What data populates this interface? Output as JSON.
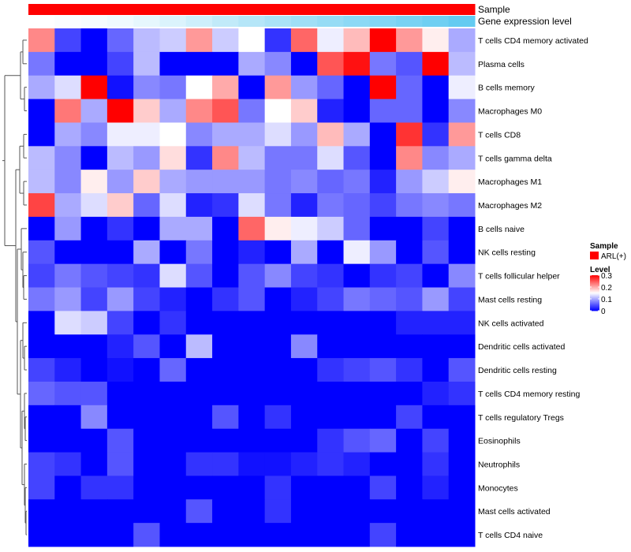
{
  "chart_data": {
    "type": "heatmap",
    "annotation_rows": [
      "Sample",
      "Gene expression level"
    ],
    "row_labels": [
      "T cells CD4 memory activated",
      "Plasma cells",
      "B cells memory",
      "Macrophages M0",
      "T cells CD8",
      "T cells gamma delta",
      "Macrophages M1",
      "Macrophages M2",
      "B cells naive",
      "NK cells resting",
      "T cells follicular helper",
      "Mast cells resting",
      "NK cells activated",
      "Dendritic cells activated",
      "Dendritic cells resting",
      "T cells CD4 memory resting",
      "T cells regulatory  Tregs",
      "Eosinophils",
      "Neutrophils",
      "Monocytes",
      "Mast cells activated",
      "T cells CD4 naive"
    ],
    "n_columns": 17,
    "values": [
      [
        0.22,
        0.04,
        0.0,
        0.06,
        0.11,
        0.12,
        0.21,
        0.12,
        0.15,
        0.03,
        0.24,
        0.14,
        0.19,
        0.3,
        0.21,
        0.16,
        0.1
      ],
      [
        0.07,
        0.0,
        0.0,
        0.04,
        0.11,
        0.0,
        0.0,
        0.0,
        0.1,
        0.08,
        0.0,
        0.25,
        0.29,
        0.07,
        0.05,
        0.3,
        0.11
      ],
      [
        0.1,
        0.13,
        0.3,
        0.01,
        0.08,
        0.07,
        0.15,
        0.2,
        0.0,
        0.21,
        0.09,
        0.06,
        0.0,
        0.3,
        0.06,
        0.0,
        0.14
      ],
      [
        0.0,
        0.23,
        0.1,
        0.3,
        0.18,
        0.1,
        0.22,
        0.25,
        0.07,
        0.15,
        0.18,
        0.02,
        0.0,
        0.06,
        0.06,
        0.0,
        0.08
      ],
      [
        0.0,
        0.1,
        0.08,
        0.14,
        0.14,
        0.15,
        0.08,
        0.1,
        0.1,
        0.13,
        0.09,
        0.19,
        0.1,
        0.0,
        0.27,
        0.03,
        0.21
      ],
      [
        0.11,
        0.08,
        0.0,
        0.11,
        0.09,
        0.17,
        0.03,
        0.22,
        0.11,
        0.07,
        0.07,
        0.13,
        0.05,
        0.0,
        0.22,
        0.08,
        0.1
      ],
      [
        0.11,
        0.08,
        0.16,
        0.09,
        0.18,
        0.1,
        0.09,
        0.09,
        0.09,
        0.07,
        0.08,
        0.06,
        0.07,
        0.02,
        0.09,
        0.12,
        0.16
      ],
      [
        0.26,
        0.1,
        0.13,
        0.18,
        0.06,
        0.13,
        0.02,
        0.03,
        0.13,
        0.07,
        0.02,
        0.07,
        0.06,
        0.04,
        0.07,
        0.08,
        0.07
      ],
      [
        0.0,
        0.09,
        0.0,
        0.03,
        0.0,
        0.1,
        0.1,
        0.0,
        0.24,
        0.16,
        0.14,
        0.12,
        0.06,
        0.0,
        0.0,
        0.04,
        0.0
      ],
      [
        0.05,
        0.0,
        0.0,
        0.0,
        0.1,
        0.0,
        0.07,
        0.0,
        0.02,
        0.0,
        0.1,
        0.0,
        0.14,
        0.09,
        0.0,
        0.05,
        0.0
      ],
      [
        0.04,
        0.07,
        0.05,
        0.04,
        0.03,
        0.13,
        0.05,
        0.0,
        0.05,
        0.08,
        0.04,
        0.03,
        0.0,
        0.03,
        0.04,
        0.0,
        0.08
      ],
      [
        0.07,
        0.09,
        0.04,
        0.09,
        0.04,
        0.02,
        0.0,
        0.03,
        0.05,
        0.0,
        0.02,
        0.04,
        0.07,
        0.06,
        0.05,
        0.09,
        0.04
      ],
      [
        0.0,
        0.13,
        0.12,
        0.04,
        0.0,
        0.03,
        0.0,
        0.0,
        0.0,
        0.0,
        0.0,
        0.0,
        0.0,
        0.0,
        0.02,
        0.02,
        0.02
      ],
      [
        0.0,
        0.0,
        0.0,
        0.02,
        0.05,
        0.0,
        0.11,
        0.0,
        0.0,
        0.0,
        0.08,
        0.0,
        0.0,
        0.0,
        0.0,
        0.0,
        0.0
      ],
      [
        0.04,
        0.02,
        0.0,
        0.01,
        0.0,
        0.06,
        0.0,
        0.0,
        0.0,
        0.0,
        0.0,
        0.03,
        0.04,
        0.05,
        0.03,
        0.0,
        0.05
      ],
      [
        0.06,
        0.05,
        0.05,
        0.0,
        0.0,
        0.0,
        0.0,
        0.0,
        0.0,
        0.0,
        0.0,
        0.0,
        0.0,
        0.0,
        0.0,
        0.02,
        0.03
      ],
      [
        0.0,
        0.0,
        0.08,
        0.0,
        0.0,
        0.0,
        0.0,
        0.05,
        0.0,
        0.03,
        0.0,
        0.0,
        0.0,
        0.0,
        0.04,
        0.0,
        0.0
      ],
      [
        0.0,
        0.0,
        0.0,
        0.05,
        0.0,
        0.0,
        0.0,
        0.0,
        0.0,
        0.0,
        0.0,
        0.03,
        0.05,
        0.06,
        0.0,
        0.04,
        0.0
      ],
      [
        0.04,
        0.03,
        0.0,
        0.05,
        0.0,
        0.0,
        0.03,
        0.03,
        0.01,
        0.01,
        0.02,
        0.03,
        0.02,
        0.0,
        0.0,
        0.03,
        0.0
      ],
      [
        0.04,
        0.0,
        0.03,
        0.03,
        0.0,
        0.0,
        0.0,
        0.0,
        0.0,
        0.03,
        0.0,
        0.0,
        0.0,
        0.04,
        0.0,
        0.02,
        0.0
      ],
      [
        0.0,
        0.0,
        0.0,
        0.0,
        0.0,
        0.0,
        0.05,
        0.0,
        0.0,
        0.03,
        0.0,
        0.0,
        0.0,
        0.0,
        0.0,
        0.0,
        0.0
      ],
      [
        0.0,
        0.0,
        0.0,
        0.0,
        0.05,
        0.0,
        0.0,
        0.0,
        0.0,
        0.0,
        0.0,
        0.0,
        0.0,
        0.04,
        0.0,
        0.0,
        0.0
      ]
    ],
    "sample_values": [
      "ARL(+)",
      "ARL(+)",
      "ARL(+)",
      "ARL(+)",
      "ARL(+)",
      "ARL(+)",
      "ARL(+)",
      "ARL(+)",
      "ARL(+)",
      "ARL(+)",
      "ARL(+)",
      "ARL(+)",
      "ARL(+)",
      "ARL(+)",
      "ARL(+)",
      "ARL(+)",
      "ARL(+)"
    ],
    "gene_expression_level": [
      0.0,
      0.03,
      0.06,
      0.1,
      0.15,
      0.22,
      0.3,
      0.38,
      0.45,
      0.52,
      0.58,
      0.64,
      0.7,
      0.76,
      0.82,
      0.88,
      0.95
    ],
    "legend": {
      "sample_title": "Sample",
      "sample_entry": "ARL(+)",
      "level_title": "Level",
      "level_ticks": [
        "0.3",
        "0.2",
        "0.1",
        "0"
      ],
      "level_tick_values": [
        0.3,
        0.2,
        0.1,
        0
      ],
      "level_range": [
        0,
        0.3
      ],
      "position": "right"
    },
    "colors": {
      "low": "#0000ff",
      "mid": "#ffffff",
      "high": "#ff0000",
      "sample": "#ff0000",
      "gene_low": "#ffffff",
      "gene_high": "#5bc8f0",
      "dendrogram": "#555555"
    }
  }
}
